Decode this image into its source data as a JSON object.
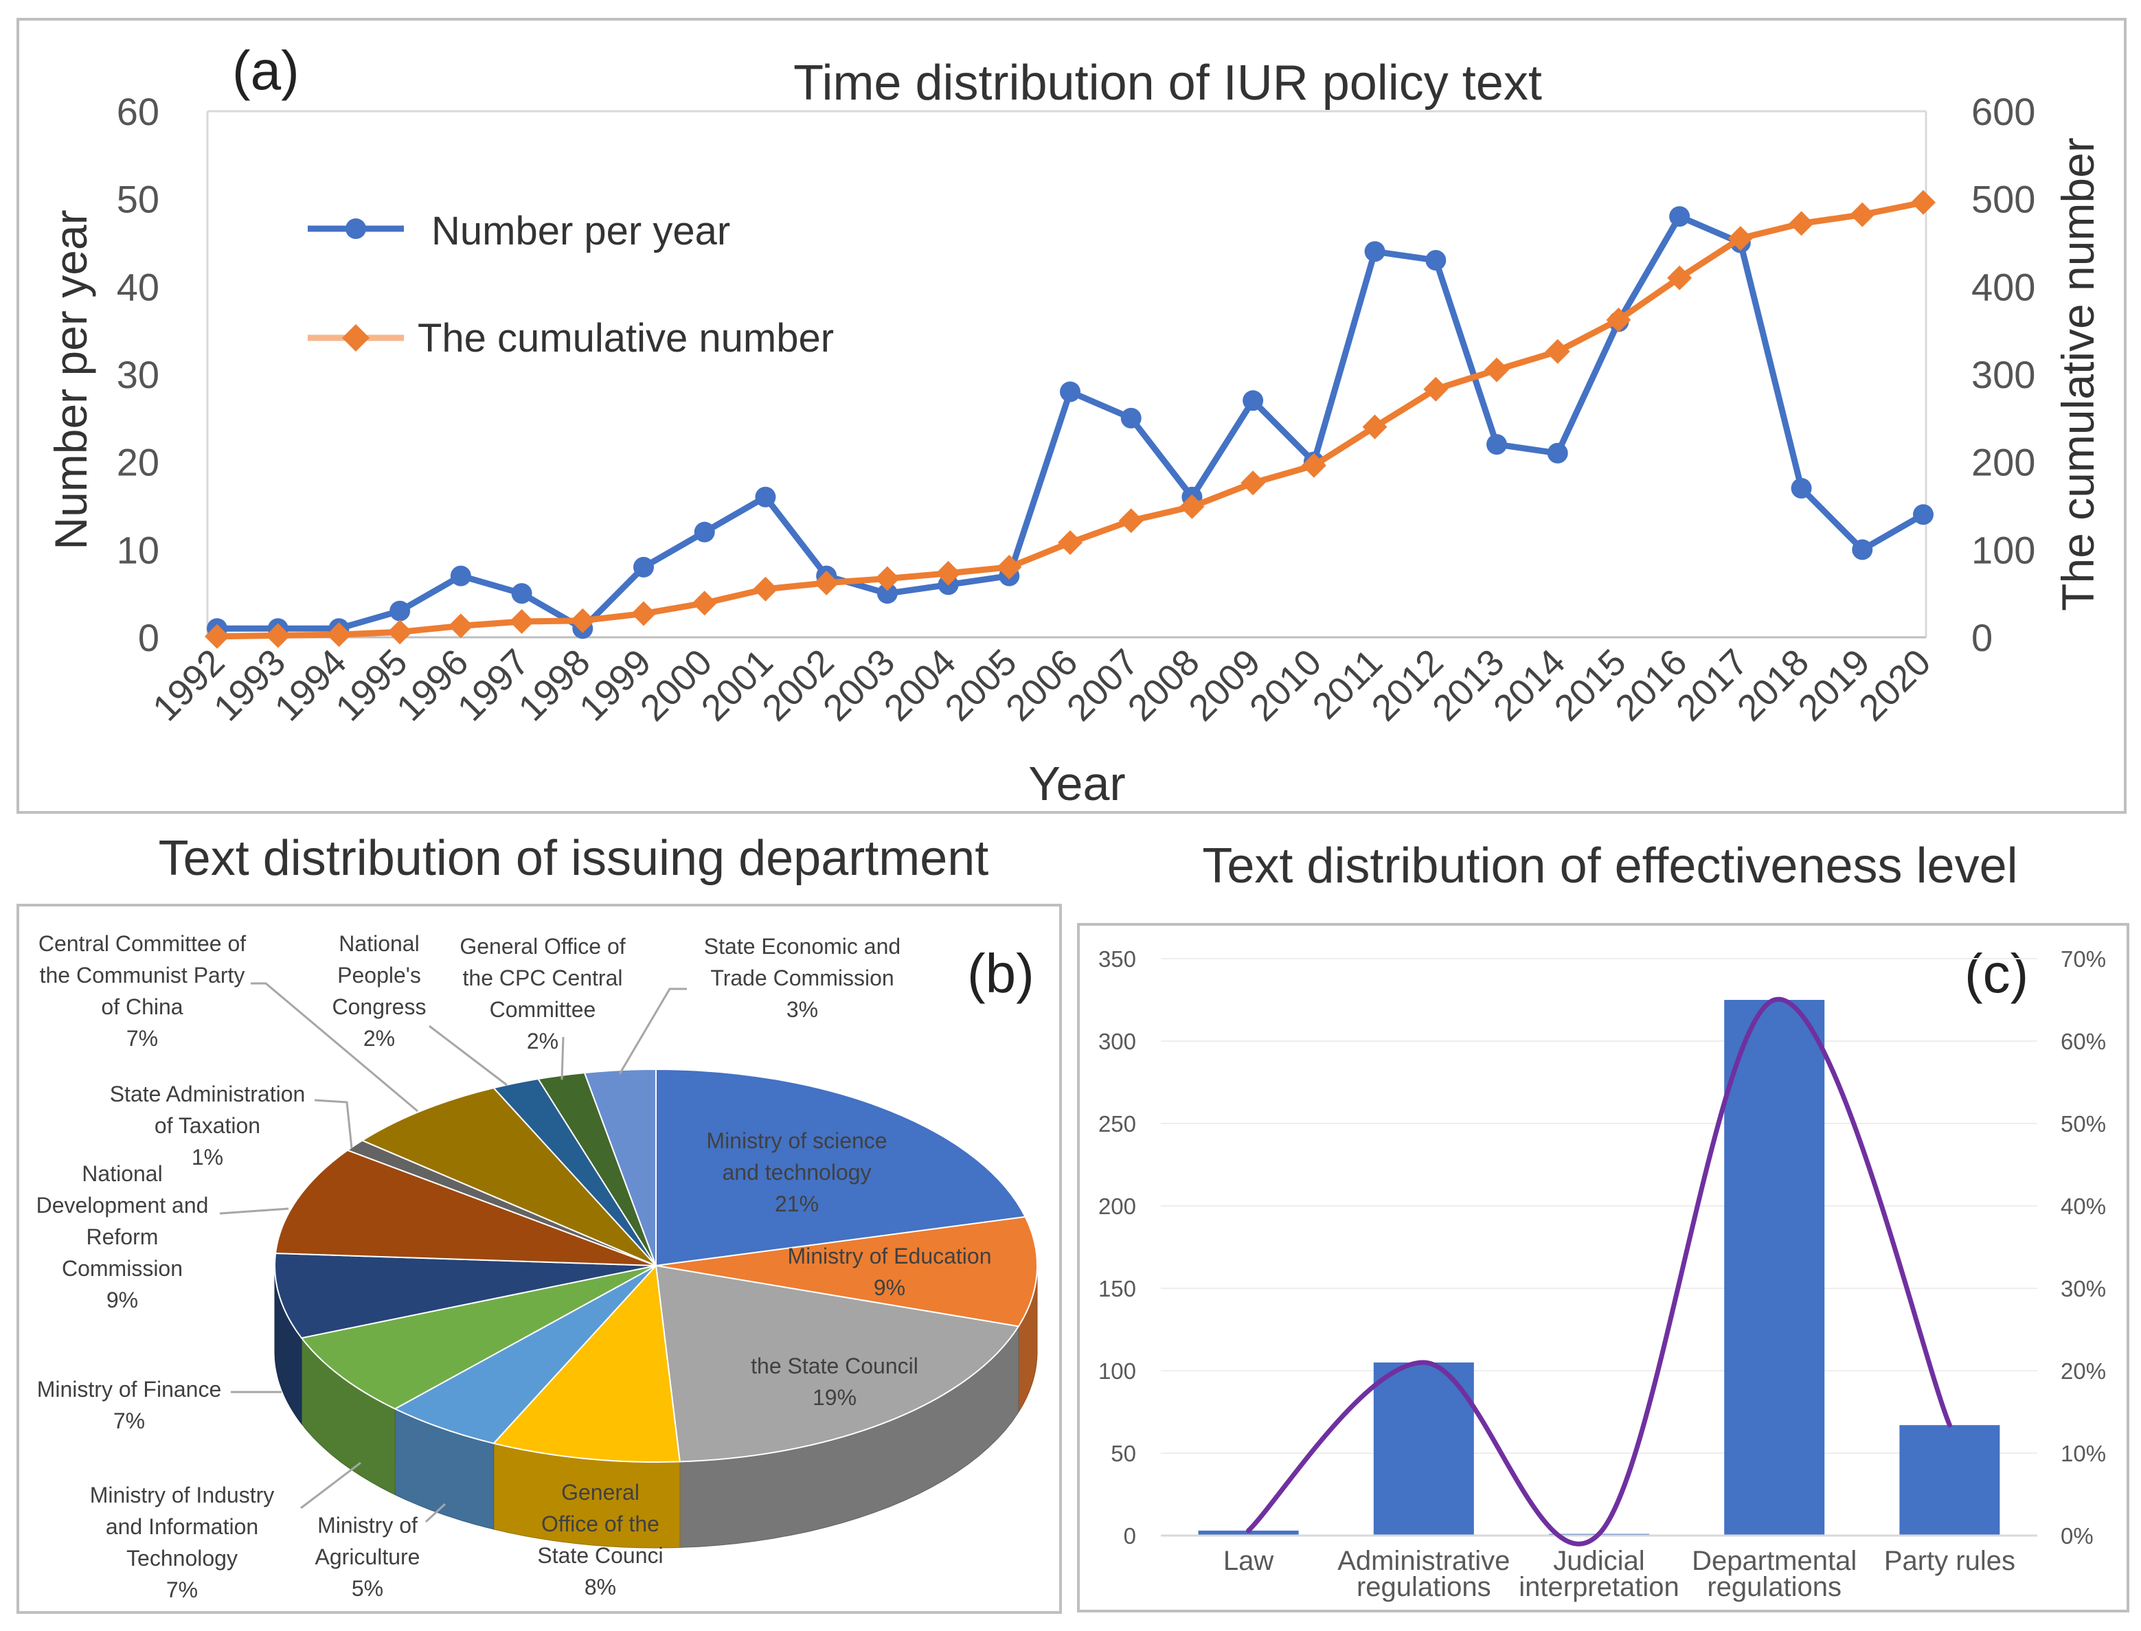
{
  "chart_data": [
    {
      "id": "a",
      "panel_label": "(a)",
      "type": "line",
      "title": "Time distribution of IUR policy text",
      "xlabel": "Year",
      "ylabel": "Number per year",
      "y2label": "The cumulative number",
      "ylim": [
        0,
        60
      ],
      "y2lim": [
        0,
        600
      ],
      "yticks": [
        "0",
        "10",
        "20",
        "30",
        "40",
        "50",
        "60"
      ],
      "y2ticks": [
        "0",
        "100",
        "200",
        "300",
        "400",
        "500",
        "600"
      ],
      "categories": [
        "1992",
        "1993",
        "1994",
        "1995",
        "1996",
        "1997",
        "1998",
        "1999",
        "2000",
        "2001",
        "2002",
        "2003",
        "2004",
        "2005",
        "2006",
        "2007",
        "2008",
        "2009",
        "2010",
        "2011",
        "2012",
        "2013",
        "2014",
        "2015",
        "2016",
        "2017",
        "2018",
        "2019",
        "2020"
      ],
      "series": [
        {
          "name": "Number per year",
          "axis": "left",
          "color": "#4472c4",
          "marker": "circle",
          "values": [
            1,
            1,
            1,
            3,
            7,
            5,
            1,
            8,
            12,
            16,
            7,
            5,
            6,
            7,
            28,
            25,
            16,
            27,
            20,
            44,
            43,
            22,
            21,
            36,
            48,
            45,
            17,
            10,
            14
          ]
        },
        {
          "name": "The cumulative number",
          "axis": "right",
          "color": "#ed7d31",
          "marker": "diamond",
          "values": [
            1,
            2,
            3,
            6,
            13,
            18,
            19,
            27,
            39,
            55,
            62,
            67,
            73,
            80,
            108,
            133,
            149,
            176,
            196,
            240,
            283,
            305,
            326,
            362,
            410,
            455,
            472,
            482,
            496
          ]
        }
      ],
      "legend": [
        "Number per year",
        "The cumulative number"
      ]
    },
    {
      "id": "b",
      "panel_label": "(b)",
      "type": "pie",
      "title": "Text distribution of issuing department",
      "slices": [
        {
          "name": "Ministry of science and technology",
          "label_lines": [
            "Ministry of science",
            "and technology"
          ],
          "pct_label": "21%",
          "value": 21,
          "color": "#4472c4"
        },
        {
          "name": "Ministry of Education",
          "label_lines": [
            "Ministry of Education"
          ],
          "pct_label": "9%",
          "value": 9,
          "color": "#ed7d31"
        },
        {
          "name": "the State Council",
          "label_lines": [
            "the State Council"
          ],
          "pct_label": "19%",
          "value": 19,
          "color": "#a5a5a5"
        },
        {
          "name": "General Office of the State Counci",
          "label_lines": [
            "General",
            "Office of the",
            "State Counci"
          ],
          "pct_label": "8%",
          "value": 8,
          "color": "#ffc000"
        },
        {
          "name": "Ministry of Agriculture",
          "label_lines": [
            "Ministry of",
            "Agriculture"
          ],
          "pct_label": "5%",
          "value": 5,
          "color": "#5b9bd5"
        },
        {
          "name": "Ministry of Industry and Information Technology",
          "label_lines": [
            "Ministry of Industry",
            "and Information",
            "Technology"
          ],
          "pct_label": "7%",
          "value": 7,
          "color": "#70ad47"
        },
        {
          "name": "Ministry of Finance",
          "label_lines": [
            "Ministry of Finance"
          ],
          "pct_label": "7%",
          "value": 7,
          "color": "#264478"
        },
        {
          "name": "National Development and Reform Commission",
          "label_lines": [
            "National",
            "Development and",
            "Reform",
            "Commission"
          ],
          "pct_label": "9%",
          "value": 9,
          "color": "#9e480e"
        },
        {
          "name": "State Administration of Taxation",
          "label_lines": [
            "State Administration",
            "of Taxation"
          ],
          "pct_label": "1%",
          "value": 1,
          "color": "#636363"
        },
        {
          "name": "Central Committee of the Communist Party of China",
          "label_lines": [
            "Central Committee of",
            "the Communist Party",
            "of China"
          ],
          "pct_label": "7%",
          "value": 7,
          "color": "#997300"
        },
        {
          "name": "National People's Congress",
          "label_lines": [
            "National",
            "People's",
            "Congress"
          ],
          "pct_label": "2%",
          "value": 2,
          "color": "#255e91"
        },
        {
          "name": "General Office of the CPC Central Committee",
          "label_lines": [
            "General Office of",
            "the CPC Central",
            "Committee"
          ],
          "pct_label": "2%",
          "value": 2,
          "color": "#43682b"
        },
        {
          "name": "State Economic and Trade Commission",
          "label_lines": [
            "State Economic and",
            "Trade Commission"
          ],
          "pct_label": "3%",
          "value": 3,
          "color": "#698ed0"
        }
      ]
    },
    {
      "id": "c",
      "panel_label": "(c)",
      "type": "bar",
      "title": "Text distribution of effectiveness level",
      "categories": [
        "Law",
        "Administrative regulations",
        "Judicial interpretation",
        "Departmental regulations",
        "Party rules"
      ],
      "category_lines": [
        [
          "Law"
        ],
        [
          "Administrative",
          "regulations"
        ],
        [
          "Judicial",
          "interpretation"
        ],
        [
          "Departmental",
          "regulations"
        ],
        [
          "Party rules"
        ]
      ],
      "values": [
        3,
        105,
        1,
        325,
        67
      ],
      "percent_values": [
        0.6,
        21,
        0.2,
        65,
        13.4
      ],
      "ylim": [
        0,
        350
      ],
      "y2lim": [
        0,
        70
      ],
      "yticks": [
        "0",
        "50",
        "100",
        "150",
        "200",
        "250",
        "300",
        "350"
      ],
      "y2ticks": [
        "0%",
        "10%",
        "20%",
        "30%",
        "40%",
        "50%",
        "60%",
        "70%"
      ],
      "bar_color": "#4472c4",
      "line_color": "#7030a0"
    }
  ]
}
